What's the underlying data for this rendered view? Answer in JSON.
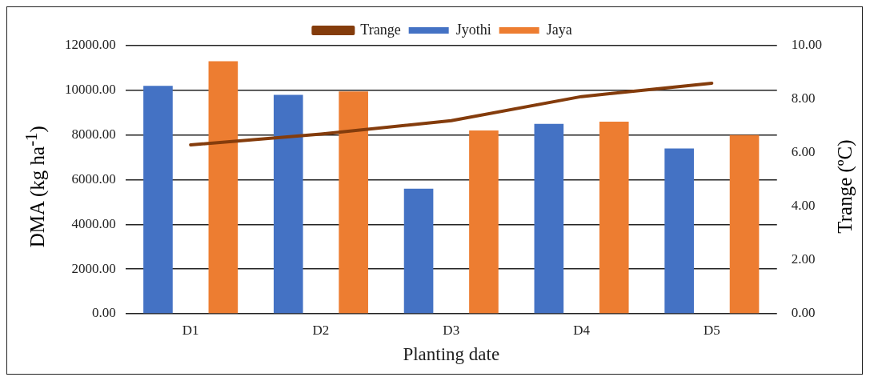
{
  "chart_data": {
    "type": "bar",
    "xlabel": "Planting date",
    "ylabel": "DMA (kg ha$^{-1}$)",
    "y2label": "Trange (ºC)",
    "categories": [
      "D1",
      "D2",
      "D3",
      "D4",
      "D5"
    ],
    "series": [
      {
        "name": "Jyothi",
        "color": "#4472c4",
        "values": [
          10200,
          9800,
          5600,
          8500,
          7400
        ]
      },
      {
        "name": "Jaya",
        "color": "#ed7d31",
        "values": [
          11300,
          9950,
          8200,
          8600,
          8000
        ]
      },
      {
        "name": "Trange",
        "type": "line",
        "axis": "y2",
        "color": "#843c0c",
        "values": [
          6.3,
          6.7,
          7.2,
          8.1,
          8.6
        ]
      }
    ],
    "ylim": [
      0,
      12000
    ],
    "yticks": [
      {
        "value": 0,
        "label": "0.00"
      },
      {
        "value": 2000,
        "label": "2000.00"
      },
      {
        "value": 4000,
        "label": "4000.00"
      },
      {
        "value": 6000,
        "label": "6000.00"
      },
      {
        "value": 8000,
        "label": "8000.00"
      },
      {
        "value": 10000,
        "label": "10000.00"
      },
      {
        "value": 12000,
        "label": "12000.00"
      }
    ],
    "y2lim": [
      0,
      10
    ],
    "y2ticks": [
      {
        "value": 0,
        "label": "0.00"
      },
      {
        "value": 2,
        "label": "2.00"
      },
      {
        "value": 4,
        "label": "4.00"
      },
      {
        "value": 6,
        "label": "6.00"
      },
      {
        "value": 8,
        "label": "8.00"
      },
      {
        "value": 10,
        "label": "10.00"
      }
    ],
    "grid": "y",
    "legend": "top",
    "marker": "none"
  }
}
